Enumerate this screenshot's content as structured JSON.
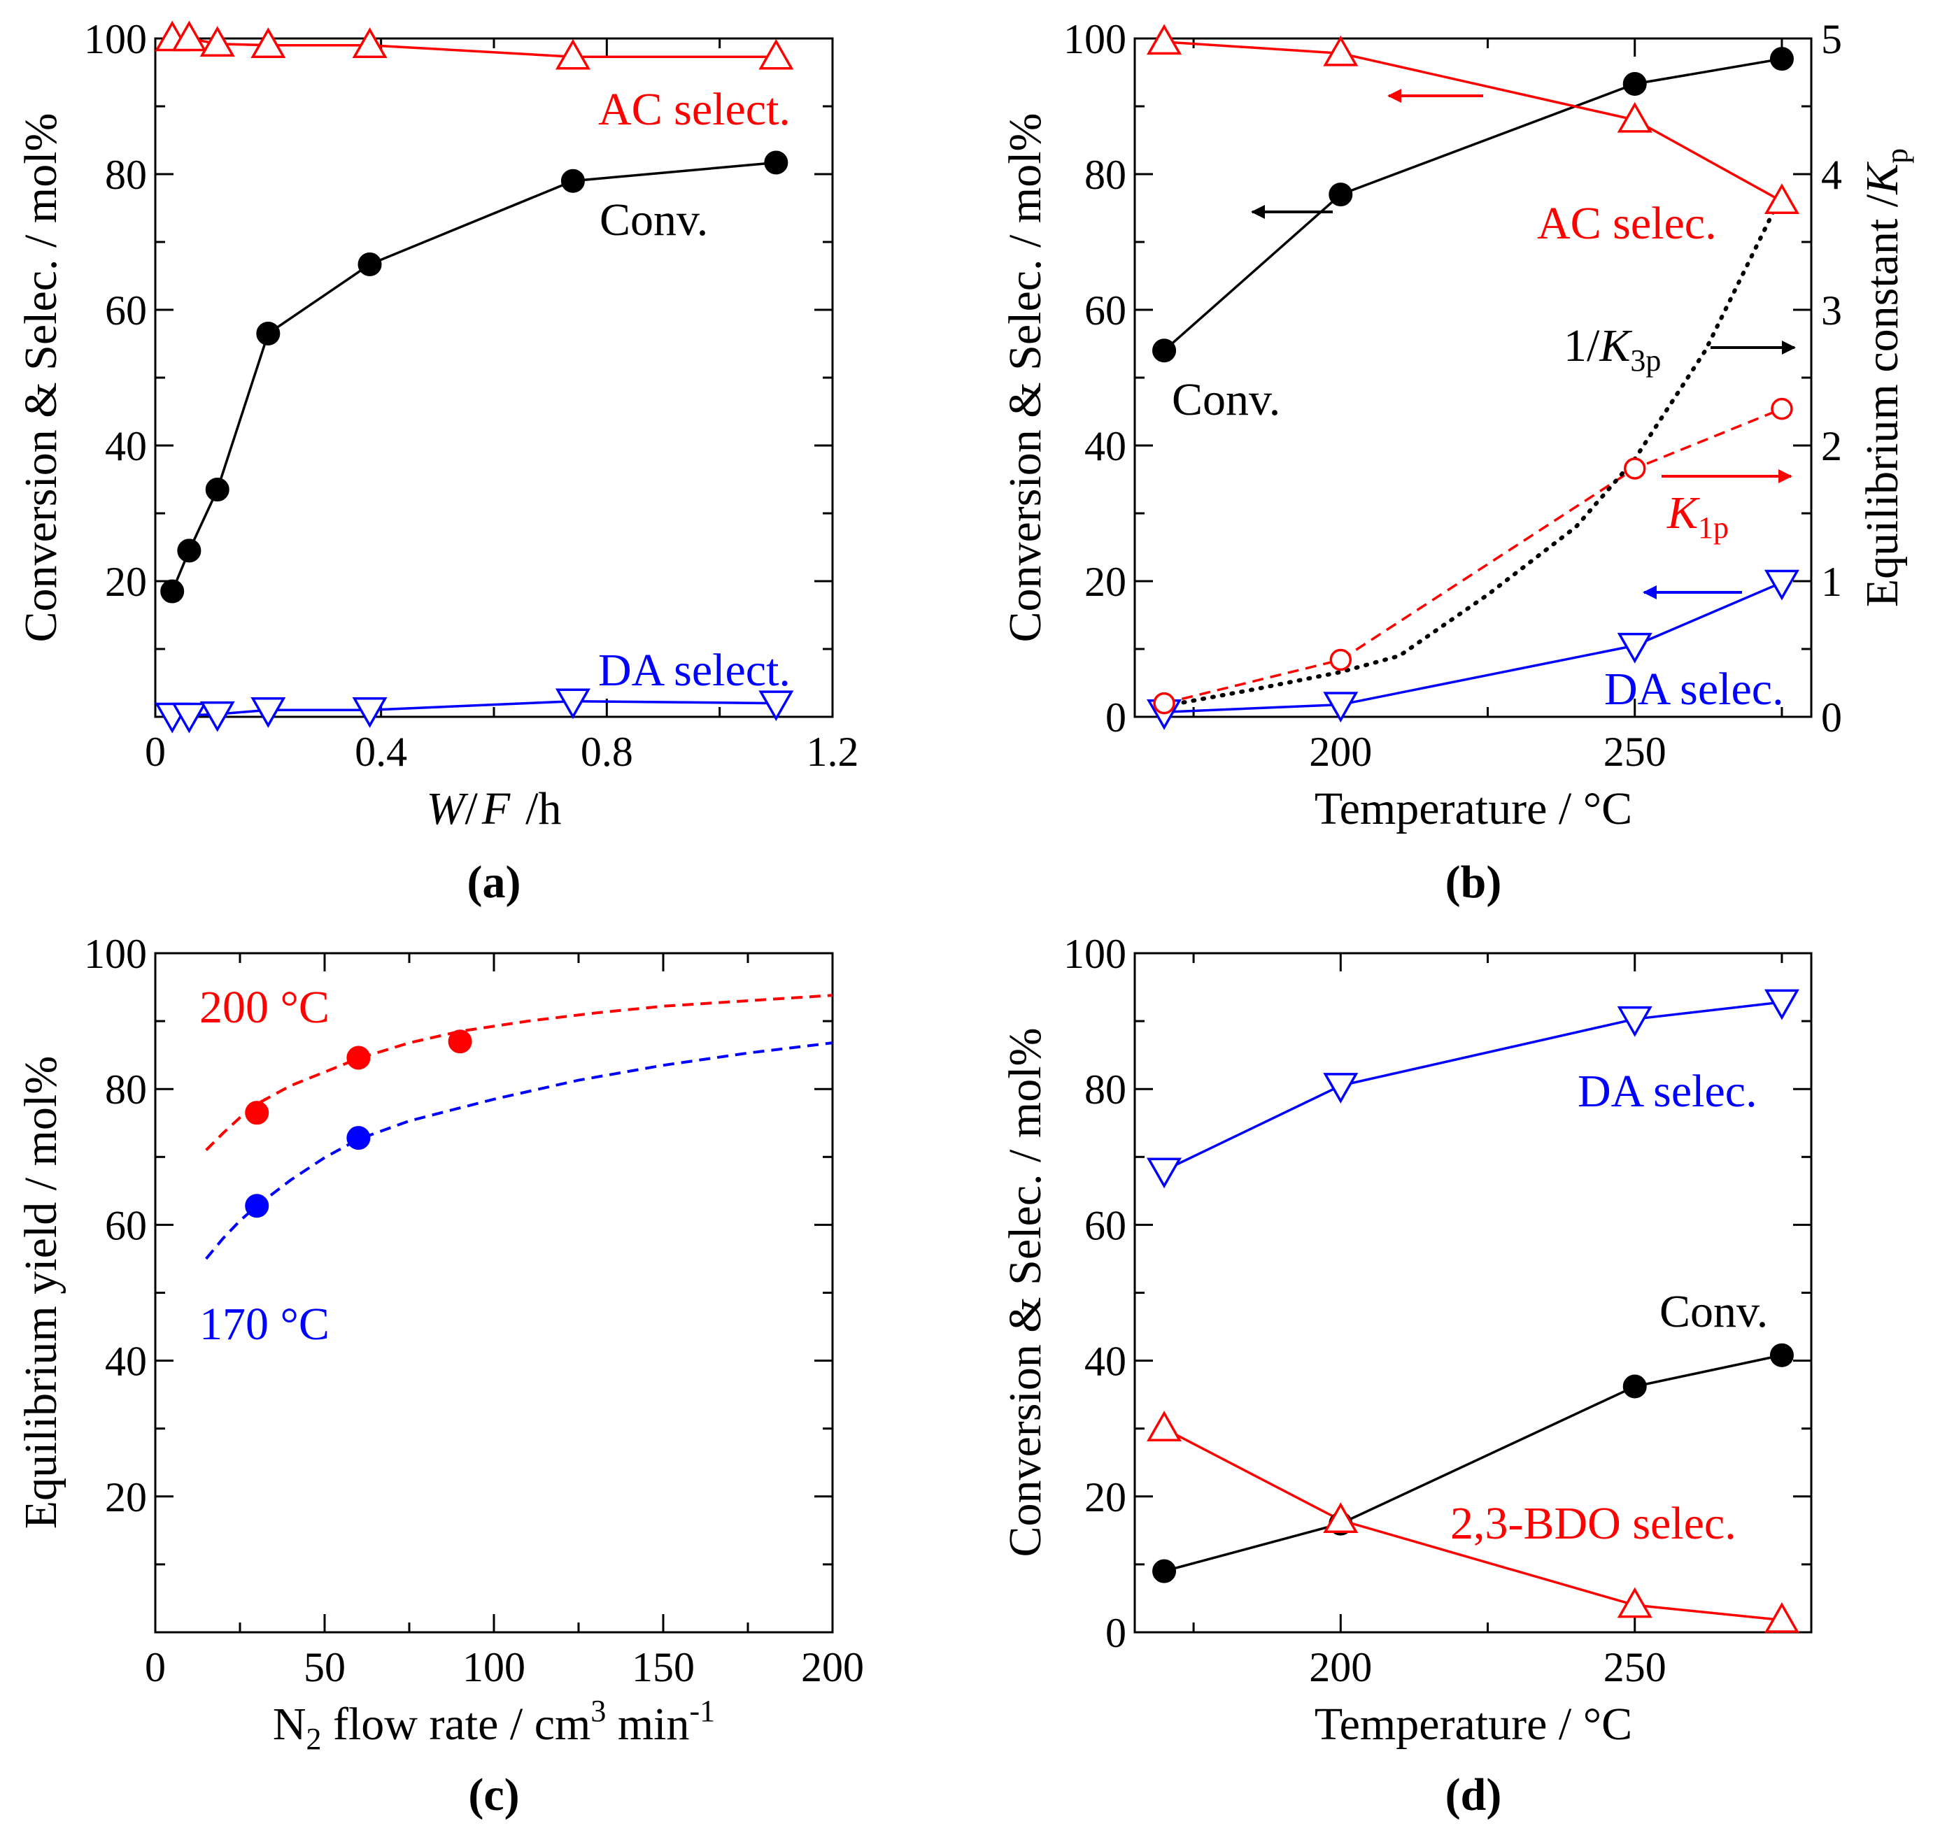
{
  "chart_data": [
    {
      "panel": "(a)",
      "type": "line",
      "xlabel_italic_w": "W",
      "xlabel_slash": "/",
      "xlabel_italic_f": "F",
      "xlabel_unit": "/h",
      "ylabel": "Conversion & Selec. / mol%",
      "xlim": [
        0,
        1.2
      ],
      "ylim": [
        0,
        100
      ],
      "xticks": [
        "0",
        "0.4",
        "0.8",
        "1.2"
      ],
      "yticks": [
        "20",
        "40",
        "60",
        "80",
        "100"
      ],
      "series": [
        {
          "name": "Conv.",
          "color": "#000000",
          "marker": "filled-circle",
          "line": "solid",
          "x": [
            0.03,
            0.06,
            0.11,
            0.2,
            0.38,
            0.74,
            1.1
          ],
          "y": [
            18.5,
            24.5,
            33.5,
            56.5,
            66.7,
            79.0,
            81.7
          ]
        },
        {
          "name": "AC select.",
          "color": "#ff0000",
          "marker": "triangle-up",
          "line": "solid",
          "x": [
            0.03,
            0.06,
            0.11,
            0.2,
            0.38,
            0.74,
            1.1
          ],
          "y": [
            100.0,
            100.0,
            99.2,
            99.0,
            99.0,
            97.3,
            97.3
          ]
        },
        {
          "name": "DA select.",
          "color": "#0000ff",
          "marker": "triangle-down",
          "line": "solid",
          "x": [
            0.03,
            0.06,
            0.11,
            0.2,
            0.38,
            0.74,
            1.1
          ],
          "y": [
            0.2,
            0.2,
            0.4,
            1.0,
            1.0,
            2.3,
            2.0
          ]
        }
      ]
    },
    {
      "panel": "(b)",
      "type": "line",
      "xlabel": "Temperature / °C",
      "ylabel": "Conversion & Selec. / mol%",
      "ylabel2_text": "Equilibrium constant /",
      "ylabel2_k": "K",
      "ylabel2_sub": "p",
      "xlim": [
        165,
        280
      ],
      "ylim": [
        0,
        100
      ],
      "y2lim": [
        0,
        5
      ],
      "xticks": [
        "200",
        "250"
      ],
      "yticks": [
        "0",
        "20",
        "40",
        "60",
        "80",
        "100"
      ],
      "y2ticks": [
        "0",
        "1",
        "2",
        "3",
        "4",
        "5"
      ],
      "series": [
        {
          "name": "Conv.",
          "color": "#000000",
          "marker": "filled-circle",
          "line": "solid",
          "axis": "left",
          "x": [
            170,
            200,
            250,
            275
          ],
          "y": [
            54.0,
            77.0,
            93.3,
            97.0
          ]
        },
        {
          "name": "AC selec.",
          "color": "#ff0000",
          "marker": "triangle-up",
          "line": "solid",
          "axis": "left",
          "x": [
            170,
            200,
            250,
            275
          ],
          "y": [
            99.5,
            97.8,
            88.0,
            76.0
          ]
        },
        {
          "name": "DA selec.",
          "color": "#0000ff",
          "marker": "triangle-down",
          "line": "solid",
          "axis": "left",
          "x": [
            170,
            200,
            250,
            275
          ],
          "y": [
            0.7,
            1.8,
            10.5,
            19.8
          ]
        },
        {
          "color": "#ff0000",
          "marker": "open-circle",
          "line": "dashed",
          "axis": "right",
          "x": [
            170,
            200,
            250,
            275
          ],
          "y": [
            0.1,
            0.42,
            1.83,
            2.27
          ]
        },
        {
          "color": "#000000",
          "marker": "none",
          "line": "dotted",
          "axis": "right",
          "x": [
            170,
            185,
            200,
            210,
            225,
            240,
            250,
            262,
            275
          ],
          "y": [
            0.08,
            0.2,
            0.33,
            0.45,
            0.9,
            1.4,
            1.9,
            2.7,
            3.85
          ]
        }
      ],
      "curve_labels": {
        "k1p_italic": "K",
        "k1p_sub": "1p",
        "k3p_prefix": "1/",
        "k3p_italic": "K",
        "k3p_sub": "3p"
      }
    },
    {
      "panel": "(c)",
      "type": "scatter",
      "xlabel_prefix": "N",
      "xlabel_sub": "2",
      "xlabel_mid": " flow rate / cm",
      "xlabel_sup": "3",
      "xlabel_min": " min",
      "xlabel_sup2": "-1",
      "ylabel": "Equilibrium yield / mol%",
      "xlim": [
        0,
        200
      ],
      "ylim": [
        0,
        100
      ],
      "xticks": [
        "0",
        "50",
        "100",
        "150",
        "200"
      ],
      "yticks": [
        "20",
        "40",
        "60",
        "80",
        "100"
      ],
      "series": [
        {
          "name": "200 °C",
          "color": "#ff0000",
          "marker": "filled-circle",
          "x": [
            30,
            60,
            90
          ],
          "y": [
            76.5,
            84.6,
            87.0
          ],
          "curve_x": [
            15,
            20,
            25,
            30,
            40,
            50,
            60,
            75,
            90,
            110,
            130,
            150,
            175,
            200
          ],
          "curve_y": [
            71.0,
            73.5,
            75.8,
            77.8,
            80.5,
            82.5,
            84.5,
            86.8,
            88.5,
            90.0,
            91.2,
            92.2,
            93.0,
            93.8
          ]
        },
        {
          "name": "170 °C",
          "color": "#0000ff",
          "marker": "filled-circle",
          "x": [
            30,
            60
          ],
          "y": [
            62.8,
            72.8
          ],
          "curve_x": [
            15,
            20,
            25,
            30,
            40,
            50,
            60,
            75,
            100,
            125,
            150,
            175,
            200
          ],
          "curve_y": [
            55.0,
            58.0,
            60.6,
            62.8,
            66.6,
            69.9,
            72.6,
            75.3,
            78.5,
            81.3,
            83.5,
            85.3,
            86.8
          ]
        }
      ]
    },
    {
      "panel": "(d)",
      "type": "line",
      "xlabel": "Temperature / °C",
      "ylabel": "Conversion & Selec. / mol%",
      "xlim": [
        165,
        280
      ],
      "ylim": [
        0,
        100
      ],
      "xticks": [
        "200",
        "250"
      ],
      "yticks": [
        "0",
        "20",
        "40",
        "60",
        "80",
        "100"
      ],
      "series": [
        {
          "name": "DA selec.",
          "color": "#0000ff",
          "marker": "triangle-down",
          "line": "solid",
          "x": [
            170,
            200,
            250,
            275
          ],
          "y": [
            68.0,
            80.5,
            90.3,
            92.8
          ]
        },
        {
          "name": "Conv.",
          "color": "#000000",
          "marker": "filled-circle",
          "line": "solid",
          "x": [
            170,
            200,
            250,
            275
          ],
          "y": [
            9.0,
            16.0,
            36.2,
            40.8
          ]
        },
        {
          "name": "2,3-BDO selec.",
          "color": "#ff0000",
          "marker": "triangle-up",
          "line": "solid",
          "x": [
            170,
            200,
            250,
            275
          ],
          "y": [
            30.0,
            16.5,
            4.0,
            1.8
          ]
        }
      ]
    }
  ]
}
